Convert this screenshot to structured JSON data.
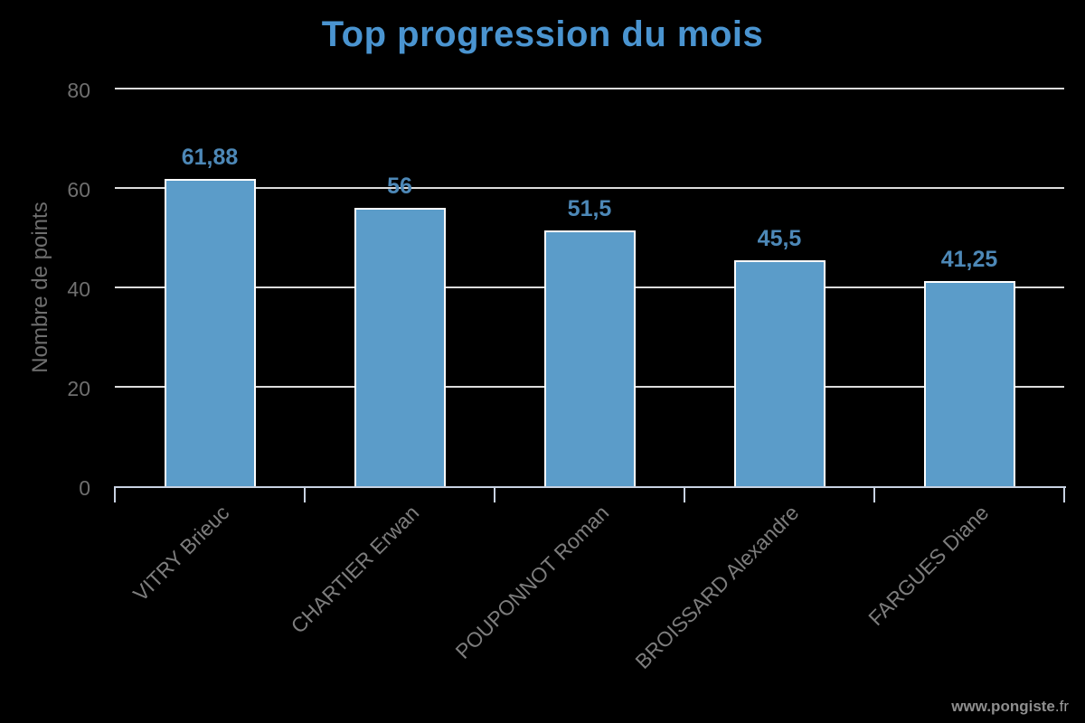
{
  "chart_data": {
    "type": "bar",
    "title": "Top progression du mois",
    "categories": [
      "VITRY Brieuc",
      "CHARTIER Erwan",
      "POUPONNOT Roman",
      "BROISSARD Alexandre",
      "FARGUES Diane"
    ],
    "values": [
      61.88,
      56,
      51.5,
      45.5,
      41.25
    ],
    "value_labels": [
      "61,88",
      "56",
      "51,5",
      "45,5",
      "41,25"
    ],
    "xlabel": "",
    "ylabel": "Nombre de points",
    "ylim": [
      0,
      80
    ],
    "yticks": [
      0,
      20,
      40,
      60,
      80
    ],
    "grid": true,
    "legend_position": "none",
    "category_label_rotation_deg": -45
  },
  "watermark": {
    "bold_part": "www.pongiste",
    "light_part": ".fr"
  },
  "colors": {
    "background": "#000000",
    "title": "#4a94d0",
    "bar_fill": "#5b9cc9",
    "bar_border": "#ffffff",
    "value_label": "#4d88b7",
    "grid_line": "#dcdcdc",
    "axis_line": "#c8d2e2",
    "tick_mark": "#c8d2e2",
    "y_tick_label": "#6f6f6f",
    "category_label": "#7d7d7d",
    "axis_title": "#6f6f6f",
    "watermark_bold": "#8e8e8e",
    "watermark_light": "#9c9c9c"
  }
}
